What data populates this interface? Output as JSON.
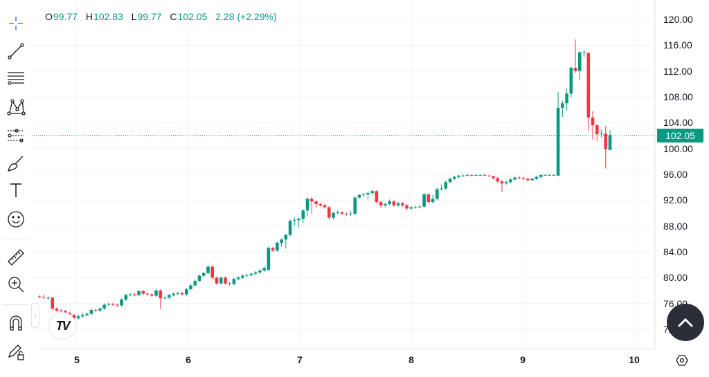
{
  "legend": {
    "open_label": "O",
    "open": "99.77",
    "high_label": "H",
    "high": "102.83",
    "low_label": "L",
    "low": "99.77",
    "close_label": "C",
    "close": "102.05",
    "change": "2.28 (+2.29%)"
  },
  "toolbar": {
    "tools": [
      "crosshair-icon",
      "trend-line-icon",
      "fib-retracement-icon",
      "pattern-icon",
      "forecast-icon",
      "brush-icon",
      "text-icon",
      "emoji-icon",
      "ruler-icon",
      "zoom-in-icon",
      "magnet-icon",
      "lock-drawings-icon"
    ]
  },
  "colors": {
    "up": "#089981",
    "down": "#f23645",
    "grid": "#f0f3fa",
    "price_line": "#089981",
    "scroll_button": "#2a2e39"
  },
  "current_price_label": "102.05",
  "chart_data": {
    "type": "candlestick",
    "y_ticks": [
      "120.00",
      "116.00",
      "112.00",
      "108.00",
      "104.00",
      "100.00",
      "96.00",
      "92.00",
      "88.00",
      "84.00",
      "80.00",
      "76.00",
      "72.00"
    ],
    "ylim": [
      72,
      120
    ],
    "x_ticks": [
      "5",
      "6",
      "7",
      "8",
      "9",
      "10"
    ],
    "grid": true,
    "current_price": 102.05,
    "candles_ohlc": [
      [
        77.1,
        77.3,
        76.8,
        77.0
      ],
      [
        77.0,
        77.4,
        76.7,
        76.9
      ],
      [
        76.9,
        77.1,
        76.5,
        76.9
      ],
      [
        76.9,
        77.0,
        75.0,
        75.2
      ],
      [
        75.2,
        75.4,
        74.7,
        74.9
      ],
      [
        74.9,
        75.1,
        74.6,
        74.8
      ],
      [
        74.8,
        75.0,
        74.3,
        74.5
      ],
      [
        74.5,
        74.7,
        74.0,
        74.2
      ],
      [
        74.2,
        74.4,
        73.4,
        73.7
      ],
      [
        73.7,
        74.3,
        73.5,
        74.0
      ],
      [
        74.0,
        74.5,
        73.8,
        74.2
      ],
      [
        74.2,
        74.6,
        74.0,
        74.4
      ],
      [
        74.4,
        75.2,
        74.2,
        75.0
      ],
      [
        75.0,
        75.2,
        74.7,
        74.9
      ],
      [
        74.9,
        75.4,
        74.7,
        75.2
      ],
      [
        75.2,
        76.0,
        75.0,
        75.8
      ],
      [
        75.8,
        76.1,
        75.6,
        75.9
      ],
      [
        75.9,
        76.1,
        75.6,
        75.8
      ],
      [
        75.8,
        76.0,
        75.5,
        75.7
      ],
      [
        75.7,
        76.8,
        75.5,
        76.6
      ],
      [
        76.6,
        77.5,
        76.4,
        77.3
      ],
      [
        77.3,
        77.6,
        77.1,
        77.4
      ],
      [
        77.4,
        77.6,
        77.1,
        77.3
      ],
      [
        77.3,
        78.1,
        77.1,
        77.9
      ],
      [
        77.9,
        78.1,
        77.3,
        77.5
      ],
      [
        77.5,
        77.7,
        77.2,
        77.4
      ],
      [
        77.4,
        77.6,
        77.0,
        77.2
      ],
      [
        77.2,
        78.2,
        77.0,
        78.0
      ],
      [
        78.0,
        78.2,
        75.1,
        76.8
      ],
      [
        76.8,
        77.1,
        76.6,
        76.9
      ],
      [
        76.9,
        77.5,
        76.7,
        77.3
      ],
      [
        77.3,
        77.7,
        77.1,
        77.5
      ],
      [
        77.5,
        77.8,
        77.3,
        77.6
      ],
      [
        77.6,
        77.8,
        77.2,
        77.4
      ],
      [
        77.4,
        78.4,
        77.2,
        78.2
      ],
      [
        78.2,
        79.0,
        78.0,
        78.8
      ],
      [
        78.8,
        79.7,
        78.6,
        79.5
      ],
      [
        79.5,
        80.5,
        79.3,
        80.3
      ],
      [
        80.3,
        80.9,
        80.1,
        80.7
      ],
      [
        80.7,
        81.9,
        80.5,
        81.7
      ],
      [
        81.7,
        81.9,
        79.8,
        80.0
      ],
      [
        80.0,
        80.2,
        78.9,
        79.1
      ],
      [
        79.1,
        80.2,
        78.9,
        80.0
      ],
      [
        80.0,
        80.2,
        78.9,
        79.1
      ],
      [
        79.1,
        79.3,
        78.8,
        79.0
      ],
      [
        79.0,
        80.0,
        78.8,
        79.8
      ],
      [
        79.8,
        80.2,
        79.6,
        80.0
      ],
      [
        80.0,
        80.5,
        79.8,
        80.3
      ],
      [
        80.3,
        80.6,
        80.1,
        80.4
      ],
      [
        80.4,
        80.8,
        80.2,
        80.6
      ],
      [
        80.6,
        81.0,
        80.4,
        80.8
      ],
      [
        80.8,
        81.3,
        80.6,
        81.1
      ],
      [
        81.1,
        81.7,
        80.9,
        81.5
      ],
      [
        81.2,
        84.8,
        81.0,
        84.6
      ],
      [
        84.6,
        84.8,
        84.0,
        84.2
      ],
      [
        84.2,
        85.6,
        84.0,
        85.4
      ],
      [
        85.4,
        86.1,
        84.8,
        85.9
      ],
      [
        85.9,
        86.8,
        84.5,
        86.6
      ],
      [
        86.6,
        89.0,
        86.4,
        88.8
      ],
      [
        88.8,
        89.3,
        88.0,
        88.9
      ],
      [
        88.9,
        89.3,
        87.8,
        89.1
      ],
      [
        89.1,
        90.6,
        88.5,
        90.4
      ],
      [
        90.4,
        92.4,
        89.5,
        92.2
      ],
      [
        92.2,
        92.5,
        89.8,
        91.8
      ],
      [
        91.8,
        92.0,
        90.8,
        91.4
      ],
      [
        91.4,
        91.6,
        91.0,
        91.2
      ],
      [
        91.2,
        91.4,
        90.7,
        90.9
      ],
      [
        90.9,
        91.1,
        89.0,
        89.3
      ],
      [
        89.3,
        90.2,
        89.0,
        90.0
      ],
      [
        90.0,
        90.4,
        89.8,
        90.1
      ],
      [
        90.1,
        90.3,
        89.7,
        89.9
      ],
      [
        89.9,
        90.1,
        89.6,
        89.8
      ],
      [
        89.8,
        90.3,
        89.6,
        89.9
      ],
      [
        89.9,
        92.6,
        89.7,
        92.4
      ],
      [
        92.4,
        93.0,
        92.2,
        92.8
      ],
      [
        92.8,
        93.1,
        92.5,
        92.9
      ],
      [
        92.9,
        93.3,
        92.1,
        93.1
      ],
      [
        93.1,
        93.6,
        92.9,
        93.4
      ],
      [
        93.4,
        93.5,
        91.5,
        91.7
      ],
      [
        91.7,
        91.9,
        90.8,
        91.2
      ],
      [
        91.2,
        91.6,
        90.9,
        91.4
      ],
      [
        91.4,
        92.1,
        91.2,
        91.8
      ],
      [
        91.8,
        92.0,
        91.0,
        91.2
      ],
      [
        91.2,
        91.7,
        91.0,
        91.5
      ],
      [
        91.5,
        91.7,
        91.0,
        91.2
      ],
      [
        91.2,
        91.4,
        90.4,
        90.7
      ],
      [
        90.7,
        91.1,
        90.5,
        90.9
      ],
      [
        90.9,
        91.1,
        90.7,
        90.9
      ],
      [
        90.9,
        91.2,
        90.7,
        91.0
      ],
      [
        91.0,
        93.1,
        90.8,
        92.9
      ],
      [
        92.9,
        93.0,
        91.5,
        91.7
      ],
      [
        91.7,
        92.8,
        91.5,
        92.2
      ],
      [
        92.2,
        93.9,
        92.0,
        93.7
      ],
      [
        93.7,
        94.4,
        93.5,
        93.8
      ],
      [
        93.8,
        95.0,
        93.6,
        94.8
      ],
      [
        94.8,
        95.5,
        94.6,
        95.3
      ],
      [
        95.3,
        95.8,
        95.1,
        95.6
      ],
      [
        95.6,
        95.9,
        95.4,
        95.8
      ],
      [
        95.8,
        96.0,
        95.6,
        95.8
      ],
      [
        95.8,
        96.0,
        95.7,
        95.9
      ],
      [
        95.9,
        96.0,
        95.7,
        95.8
      ],
      [
        95.8,
        96.0,
        95.7,
        95.9
      ],
      [
        95.9,
        96.0,
        95.8,
        95.9
      ],
      [
        95.9,
        96.0,
        95.7,
        95.8
      ],
      [
        95.8,
        95.9,
        95.6,
        95.7
      ],
      [
        95.7,
        95.8,
        95.2,
        95.4
      ],
      [
        95.4,
        95.6,
        94.7,
        94.9
      ],
      [
        94.9,
        95.1,
        93.3,
        94.6
      ],
      [
        94.6,
        95.0,
        94.4,
        94.8
      ],
      [
        94.8,
        95.4,
        94.6,
        95.2
      ],
      [
        95.2,
        95.7,
        95.0,
        95.5
      ],
      [
        95.5,
        95.7,
        95.2,
        95.4
      ],
      [
        95.4,
        95.6,
        95.1,
        95.3
      ],
      [
        95.3,
        95.5,
        94.9,
        95.1
      ],
      [
        95.1,
        95.5,
        94.9,
        95.3
      ],
      [
        95.3,
        95.8,
        95.1,
        95.6
      ],
      [
        95.6,
        96.0,
        95.4,
        95.9
      ],
      [
        95.9,
        96.0,
        95.8,
        95.9
      ],
      [
        95.9,
        96.0,
        95.8,
        95.9
      ],
      [
        95.9,
        96.0,
        95.8,
        95.9
      ],
      [
        95.8,
        108.8,
        95.7,
        106.3
      ],
      [
        106.3,
        107.4,
        104.9,
        107.0
      ],
      [
        107.0,
        109.3,
        105.9,
        108.5
      ],
      [
        108.5,
        112.7,
        107.9,
        112.5
      ],
      [
        112.5,
        116.9,
        111.7,
        112.0
      ],
      [
        112.0,
        115.0,
        110.6,
        114.9
      ],
      [
        114.9,
        115.3,
        114.1,
        114.9
      ],
      [
        114.8,
        114.9,
        102.7,
        104.8
      ],
      [
        104.8,
        105.8,
        101.4,
        103.6
      ],
      [
        103.6,
        103.8,
        101.1,
        102.2
      ],
      [
        102.2,
        102.9,
        101.7,
        102.3
      ],
      [
        102.3,
        103.5,
        96.9,
        99.9
      ],
      [
        99.77,
        102.83,
        99.77,
        102.05
      ]
    ]
  }
}
